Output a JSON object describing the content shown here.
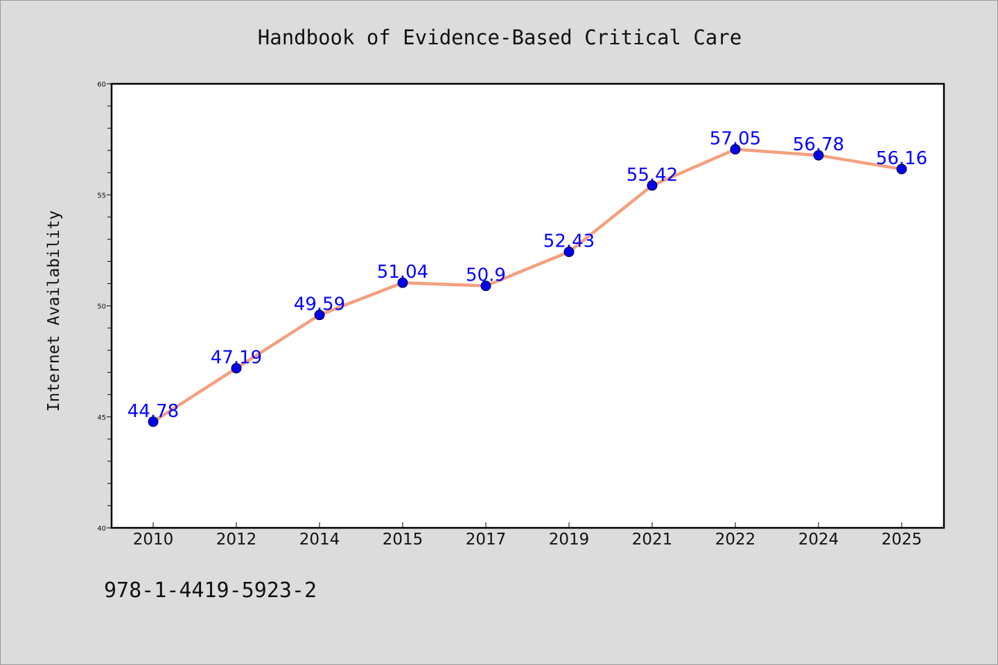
{
  "chart_data": {
    "type": "line",
    "title": "Handbook of Evidence-Based Critical Care",
    "xlabel": "",
    "ylabel": "Internet Availability",
    "categories": [
      "2010",
      "2012",
      "2014",
      "2015",
      "2017",
      "2019",
      "2021",
      "2022",
      "2024",
      "2025"
    ],
    "series": [
      {
        "values": [
          44.78,
          47.19,
          49.59,
          51.04,
          50.9,
          52.43,
          55.42,
          57.05,
          56.78,
          56.16
        ],
        "labels": [
          "44.78",
          "47.19",
          "49.59",
          "51.04",
          "50.9",
          "52.43",
          "55.42",
          "57.05",
          "56.78",
          "56.16"
        ]
      }
    ],
    "ylim": [
      40,
      60
    ],
    "yticks": [
      "40",
      "45",
      "50",
      "55",
      "60"
    ],
    "grid": false,
    "colors": {
      "line": "#f4a07f",
      "marker": "#0000ee",
      "label": "#0000ff",
      "plot_background": "#ffffff",
      "page_background": "#dcdcdc"
    }
  },
  "footer": {
    "isbn": "978-1-4419-5923-2"
  }
}
